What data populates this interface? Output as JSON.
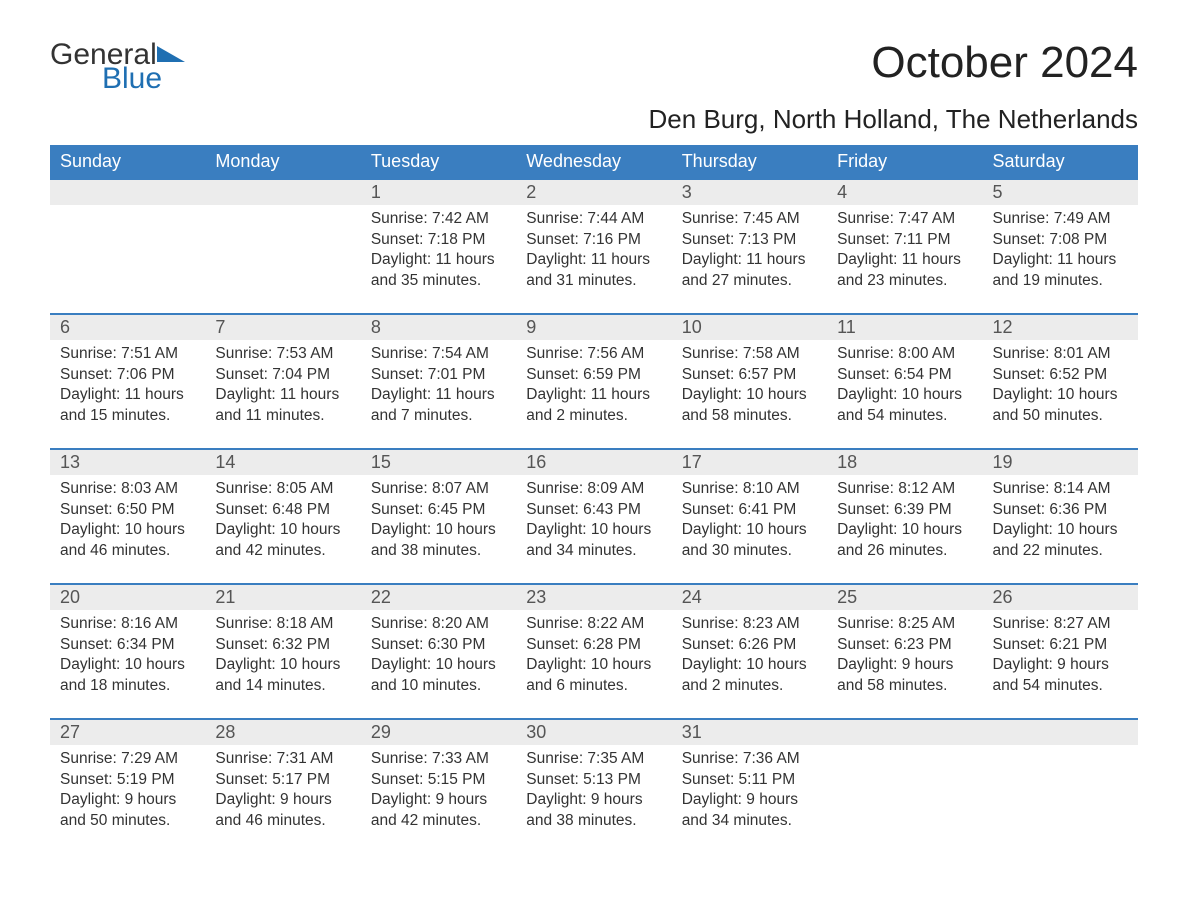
{
  "colors": {
    "header_bg": "#3a7ec0",
    "header_fg": "#ffffff",
    "daynum_bg": "#ececec",
    "rule": "#3a7ec0",
    "logo_blue": "#1f6fb2",
    "text": "#333333"
  },
  "logo": {
    "general": "General",
    "blue": "Blue"
  },
  "title": {
    "month": "October 2024",
    "location": "Den Burg, North Holland, The Netherlands"
  },
  "weekdays": [
    "Sunday",
    "Monday",
    "Tuesday",
    "Wednesday",
    "Thursday",
    "Friday",
    "Saturday"
  ],
  "weeks": [
    [
      null,
      null,
      {
        "n": "1",
        "sunrise": "Sunrise: 7:42 AM",
        "sunset": "Sunset: 7:18 PM",
        "day1": "Daylight: 11 hours",
        "day2": "and 35 minutes."
      },
      {
        "n": "2",
        "sunrise": "Sunrise: 7:44 AM",
        "sunset": "Sunset: 7:16 PM",
        "day1": "Daylight: 11 hours",
        "day2": "and 31 minutes."
      },
      {
        "n": "3",
        "sunrise": "Sunrise: 7:45 AM",
        "sunset": "Sunset: 7:13 PM",
        "day1": "Daylight: 11 hours",
        "day2": "and 27 minutes."
      },
      {
        "n": "4",
        "sunrise": "Sunrise: 7:47 AM",
        "sunset": "Sunset: 7:11 PM",
        "day1": "Daylight: 11 hours",
        "day2": "and 23 minutes."
      },
      {
        "n": "5",
        "sunrise": "Sunrise: 7:49 AM",
        "sunset": "Sunset: 7:08 PM",
        "day1": "Daylight: 11 hours",
        "day2": "and 19 minutes."
      }
    ],
    [
      {
        "n": "6",
        "sunrise": "Sunrise: 7:51 AM",
        "sunset": "Sunset: 7:06 PM",
        "day1": "Daylight: 11 hours",
        "day2": "and 15 minutes."
      },
      {
        "n": "7",
        "sunrise": "Sunrise: 7:53 AM",
        "sunset": "Sunset: 7:04 PM",
        "day1": "Daylight: 11 hours",
        "day2": "and 11 minutes."
      },
      {
        "n": "8",
        "sunrise": "Sunrise: 7:54 AM",
        "sunset": "Sunset: 7:01 PM",
        "day1": "Daylight: 11 hours",
        "day2": "and 7 minutes."
      },
      {
        "n": "9",
        "sunrise": "Sunrise: 7:56 AM",
        "sunset": "Sunset: 6:59 PM",
        "day1": "Daylight: 11 hours",
        "day2": "and 2 minutes."
      },
      {
        "n": "10",
        "sunrise": "Sunrise: 7:58 AM",
        "sunset": "Sunset: 6:57 PM",
        "day1": "Daylight: 10 hours",
        "day2": "and 58 minutes."
      },
      {
        "n": "11",
        "sunrise": "Sunrise: 8:00 AM",
        "sunset": "Sunset: 6:54 PM",
        "day1": "Daylight: 10 hours",
        "day2": "and 54 minutes."
      },
      {
        "n": "12",
        "sunrise": "Sunrise: 8:01 AM",
        "sunset": "Sunset: 6:52 PM",
        "day1": "Daylight: 10 hours",
        "day2": "and 50 minutes."
      }
    ],
    [
      {
        "n": "13",
        "sunrise": "Sunrise: 8:03 AM",
        "sunset": "Sunset: 6:50 PM",
        "day1": "Daylight: 10 hours",
        "day2": "and 46 minutes."
      },
      {
        "n": "14",
        "sunrise": "Sunrise: 8:05 AM",
        "sunset": "Sunset: 6:48 PM",
        "day1": "Daylight: 10 hours",
        "day2": "and 42 minutes."
      },
      {
        "n": "15",
        "sunrise": "Sunrise: 8:07 AM",
        "sunset": "Sunset: 6:45 PM",
        "day1": "Daylight: 10 hours",
        "day2": "and 38 minutes."
      },
      {
        "n": "16",
        "sunrise": "Sunrise: 8:09 AM",
        "sunset": "Sunset: 6:43 PM",
        "day1": "Daylight: 10 hours",
        "day2": "and 34 minutes."
      },
      {
        "n": "17",
        "sunrise": "Sunrise: 8:10 AM",
        "sunset": "Sunset: 6:41 PM",
        "day1": "Daylight: 10 hours",
        "day2": "and 30 minutes."
      },
      {
        "n": "18",
        "sunrise": "Sunrise: 8:12 AM",
        "sunset": "Sunset: 6:39 PM",
        "day1": "Daylight: 10 hours",
        "day2": "and 26 minutes."
      },
      {
        "n": "19",
        "sunrise": "Sunrise: 8:14 AM",
        "sunset": "Sunset: 6:36 PM",
        "day1": "Daylight: 10 hours",
        "day2": "and 22 minutes."
      }
    ],
    [
      {
        "n": "20",
        "sunrise": "Sunrise: 8:16 AM",
        "sunset": "Sunset: 6:34 PM",
        "day1": "Daylight: 10 hours",
        "day2": "and 18 minutes."
      },
      {
        "n": "21",
        "sunrise": "Sunrise: 8:18 AM",
        "sunset": "Sunset: 6:32 PM",
        "day1": "Daylight: 10 hours",
        "day2": "and 14 minutes."
      },
      {
        "n": "22",
        "sunrise": "Sunrise: 8:20 AM",
        "sunset": "Sunset: 6:30 PM",
        "day1": "Daylight: 10 hours",
        "day2": "and 10 minutes."
      },
      {
        "n": "23",
        "sunrise": "Sunrise: 8:22 AM",
        "sunset": "Sunset: 6:28 PM",
        "day1": "Daylight: 10 hours",
        "day2": "and 6 minutes."
      },
      {
        "n": "24",
        "sunrise": "Sunrise: 8:23 AM",
        "sunset": "Sunset: 6:26 PM",
        "day1": "Daylight: 10 hours",
        "day2": "and 2 minutes."
      },
      {
        "n": "25",
        "sunrise": "Sunrise: 8:25 AM",
        "sunset": "Sunset: 6:23 PM",
        "day1": "Daylight: 9 hours",
        "day2": "and 58 minutes."
      },
      {
        "n": "26",
        "sunrise": "Sunrise: 8:27 AM",
        "sunset": "Sunset: 6:21 PM",
        "day1": "Daylight: 9 hours",
        "day2": "and 54 minutes."
      }
    ],
    [
      {
        "n": "27",
        "sunrise": "Sunrise: 7:29 AM",
        "sunset": "Sunset: 5:19 PM",
        "day1": "Daylight: 9 hours",
        "day2": "and 50 minutes."
      },
      {
        "n": "28",
        "sunrise": "Sunrise: 7:31 AM",
        "sunset": "Sunset: 5:17 PM",
        "day1": "Daylight: 9 hours",
        "day2": "and 46 minutes."
      },
      {
        "n": "29",
        "sunrise": "Sunrise: 7:33 AM",
        "sunset": "Sunset: 5:15 PM",
        "day1": "Daylight: 9 hours",
        "day2": "and 42 minutes."
      },
      {
        "n": "30",
        "sunrise": "Sunrise: 7:35 AM",
        "sunset": "Sunset: 5:13 PM",
        "day1": "Daylight: 9 hours",
        "day2": "and 38 minutes."
      },
      {
        "n": "31",
        "sunrise": "Sunrise: 7:36 AM",
        "sunset": "Sunset: 5:11 PM",
        "day1": "Daylight: 9 hours",
        "day2": "and 34 minutes."
      },
      null,
      null
    ]
  ]
}
